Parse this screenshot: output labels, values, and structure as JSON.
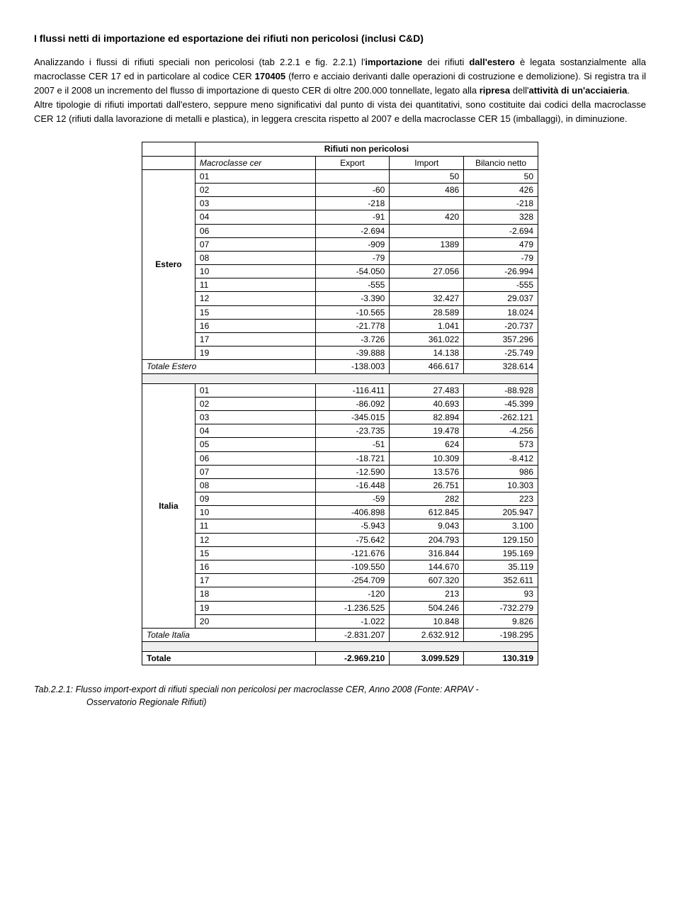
{
  "title": "I flussi netti di importazione ed esportazione dei rifiuti non pericolosi (inclusi C&D)",
  "para": "Analizzando i flussi di rifiuti speciali non pericolosi (tab 2.2.1 e fig. 2.2.1) l'<b>importazione</b> dei rifiuti <b>dall'estero</b> è legata sostanzialmente alla macroclasse CER 17 ed in particolare al codice CER <b>170405</b> (ferro e acciaio derivanti dalle operazioni di costruzione e demolizione). Si registra tra il 2007 e il 2008 un incremento del flusso di importazione di questo CER di oltre 200.000 tonnellate, legato alla <b>ripresa</b> dell'<b>attività di un'acciaieria</b>.<br>Altre tipologie di rifiuti importati dall'estero, seppure meno significativi dal punto di vista dei quantitativi, sono costituite dai codici della macroclasse CER 12 (rifiuti dalla lavorazione di metalli e plastica), in leggera crescita rispetto al 2007 e della macroclasse CER 15 (imballaggi), in diminuzione.",
  "table": {
    "sup_title": "Rifiuti non pericolosi",
    "headers": [
      "Macroclasse cer",
      "Export",
      "Import",
      "Bilancio netto"
    ],
    "sections": [
      {
        "label": "Estero",
        "rows": [
          [
            "01",
            "",
            "50",
            "50"
          ],
          [
            "02",
            "-60",
            "486",
            "426"
          ],
          [
            "03",
            "-218",
            "",
            "-218"
          ],
          [
            "04",
            "-91",
            "420",
            "328"
          ],
          [
            "06",
            "-2.694",
            "",
            "-2.694"
          ],
          [
            "07",
            "-909",
            "1389",
            "479"
          ],
          [
            "08",
            "-79",
            "",
            "-79"
          ],
          [
            "10",
            "-54.050",
            "27.056",
            "-26.994"
          ],
          [
            "11",
            "-555",
            "",
            "-555"
          ],
          [
            "12",
            "-3.390",
            "32.427",
            "29.037"
          ],
          [
            "15",
            "-10.565",
            "28.589",
            "18.024"
          ],
          [
            "16",
            "-21.778",
            "1.041",
            "-20.737"
          ],
          [
            "17",
            "-3.726",
            "361.022",
            "357.296"
          ],
          [
            "19",
            "-39.888",
            "14.138",
            "-25.749"
          ]
        ],
        "total": [
          "Totale Estero",
          "-138.003",
          "466.617",
          "328.614"
        ]
      },
      {
        "label": "Italia",
        "rows": [
          [
            "01",
            "-116.411",
            "27.483",
            "-88.928"
          ],
          [
            "02",
            "-86.092",
            "40.693",
            "-45.399"
          ],
          [
            "03",
            "-345.015",
            "82.894",
            "-262.121"
          ],
          [
            "04",
            "-23.735",
            "19.478",
            "-4.256"
          ],
          [
            "05",
            "-51",
            "624",
            "573"
          ],
          [
            "06",
            "-18.721",
            "10.309",
            "-8.412"
          ],
          [
            "07",
            "-12.590",
            "13.576",
            "986"
          ],
          [
            "08",
            "-16.448",
            "26.751",
            "10.303"
          ],
          [
            "09",
            "-59",
            "282",
            "223"
          ],
          [
            "10",
            "-406.898",
            "612.845",
            "205.947"
          ],
          [
            "11",
            "-5.943",
            "9.043",
            "3.100"
          ],
          [
            "12",
            "-75.642",
            "204.793",
            "129.150"
          ],
          [
            "15",
            "-121.676",
            "316.844",
            "195.169"
          ],
          [
            "16",
            "-109.550",
            "144.670",
            "35.119"
          ],
          [
            "17",
            "-254.709",
            "607.320",
            "352.611"
          ],
          [
            "18",
            "-120",
            "213",
            "93"
          ],
          [
            "19",
            "-1.236.525",
            "504.246",
            "-732.279"
          ],
          [
            "20",
            "-1.022",
            "10.848",
            "9.826"
          ]
        ],
        "total": [
          "Totale Italia",
          "-2.831.207",
          "2.632.912",
          "-198.295"
        ]
      }
    ],
    "grand_total": [
      "Totale",
      "-2.969.210",
      "3.099.529",
      "130.319"
    ]
  },
  "caption_lead": "Tab.2.2.1: Flusso import-export di rifiuti speciali non pericolosi per macroclasse CER, Anno 2008 (Fonte: ARPAV -",
  "caption_sub": "Osservatorio Regionale Rifiuti)"
}
